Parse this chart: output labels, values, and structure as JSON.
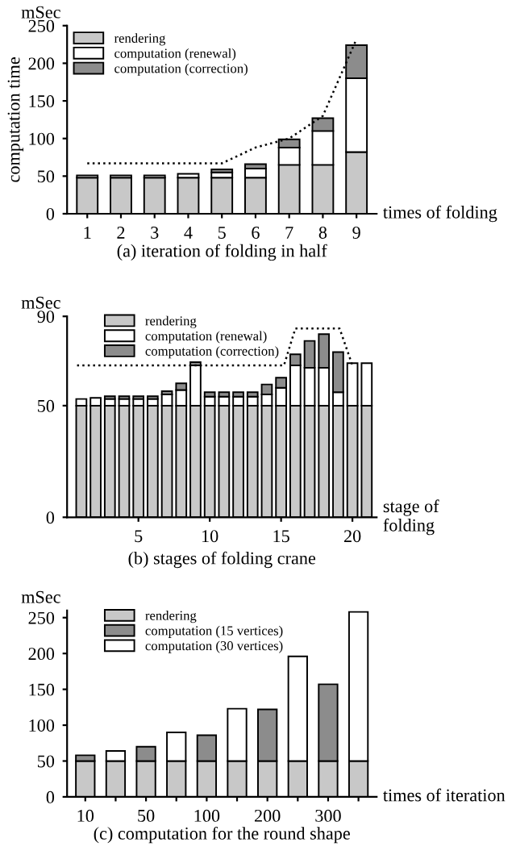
{
  "chart_data": [
    {
      "type": "bar",
      "stacked": true,
      "title": "(a) iteration of folding in half",
      "xlabel": "times of folding",
      "ylabel": "computation time",
      "annotations": [
        "mSec"
      ],
      "categories": [
        "1",
        "2",
        "3",
        "4",
        "5",
        "6",
        "7",
        "8",
        "9"
      ],
      "ylim": [
        0,
        250
      ],
      "yticks": [
        0,
        50,
        100,
        150,
        200,
        250
      ],
      "legend": "top left",
      "grid": false,
      "series": [
        {
          "name": "rendering",
          "color": "#c8c8c8",
          "values": [
            48,
            48,
            48,
            48,
            48,
            48,
            65,
            65,
            82
          ]
        },
        {
          "name": "computation (renewal)",
          "color": "#ffffff",
          "values": [
            3,
            3,
            3,
            5,
            7,
            12,
            23,
            45,
            98
          ]
        },
        {
          "name": "computation (correction)",
          "color": "#8c8c8c",
          "values": [
            0,
            0,
            0,
            0,
            4,
            6,
            11,
            17,
            44
          ]
        },
        {
          "type": "line",
          "color": "#000000",
          "line_style": "dotted",
          "marker": "none",
          "values": [
            67,
            67,
            67,
            67,
            67,
            88,
            100,
            130,
            232
          ]
        }
      ]
    },
    {
      "type": "bar",
      "stacked": true,
      "title": "(b) stages of folding crane",
      "xlabel": "stage of\nfolding",
      "annotations": [
        "mSec"
      ],
      "x": [
        1,
        2,
        3,
        4,
        5,
        6,
        7,
        8,
        9,
        10,
        11,
        12,
        13,
        14,
        15,
        16,
        17,
        18,
        19,
        20,
        21
      ],
      "xlim": [
        0,
        21.7
      ],
      "xticks": [
        5,
        10,
        15,
        20
      ],
      "ylim": [
        0,
        90
      ],
      "yticks": [
        0,
        50,
        90
      ],
      "legend": "top left",
      "grid": false,
      "series": [
        {
          "name": "rendering",
          "color": "#c8c8c8",
          "values": [
            50,
            50,
            50,
            50,
            50,
            50,
            50,
            50,
            50,
            50,
            50,
            50,
            50,
            50,
            50,
            50,
            50,
            50,
            50,
            50,
            50
          ]
        },
        {
          "name": "computation (renewal)",
          "color": "#ffffff",
          "values": [
            3,
            3.5,
            3,
            3,
            3,
            3,
            5,
            7,
            18,
            4,
            4,
            4,
            4,
            5,
            8,
            18,
            17,
            17,
            6,
            19,
            19
          ]
        },
        {
          "name": "computation (correction)",
          "color": "#8c8c8c",
          "values": [
            0,
            0,
            1.2,
            1.2,
            1.2,
            1.2,
            1.5,
            3,
            1.5,
            2,
            2,
            2,
            2,
            4.5,
            4.5,
            5,
            12,
            15,
            18,
            0,
            0
          ]
        },
        {
          "type": "line",
          "color": "#000000",
          "line_style": "dotted",
          "marker": "none",
          "x": [
            0.7,
            15.2,
            16,
            19.1,
            20
          ],
          "values": [
            68,
            68,
            84.6,
            84.6,
            68
          ]
        }
      ]
    },
    {
      "type": "bar",
      "stacked": true,
      "title": "(c) computation for the round shape",
      "xlabel": "times of iteration",
      "annotations": [
        "mSec"
      ],
      "categories": [
        "10",
        null,
        "50",
        null,
        "100",
        null,
        "200",
        null,
        "300",
        null
      ],
      "ylim": [
        0,
        260
      ],
      "yticks": [
        0,
        50,
        100,
        150,
        200,
        250
      ],
      "legend": "top left",
      "grid": false,
      "series": [
        {
          "name": "rendering",
          "color": "#c8c8c8",
          "values": [
            50,
            50,
            50,
            50,
            50,
            50,
            50,
            50,
            50,
            50
          ]
        },
        {
          "name": "computation (15 vertices)",
          "color": "#8c8c8c",
          "values": [
            8,
            null,
            20,
            null,
            36,
            null,
            72,
            null,
            107,
            null
          ]
        },
        {
          "name": "computation (30 vertices)",
          "color": "#ffffff",
          "values": [
            null,
            14,
            null,
            40,
            null,
            73,
            null,
            146,
            null,
            208
          ]
        }
      ]
    }
  ]
}
